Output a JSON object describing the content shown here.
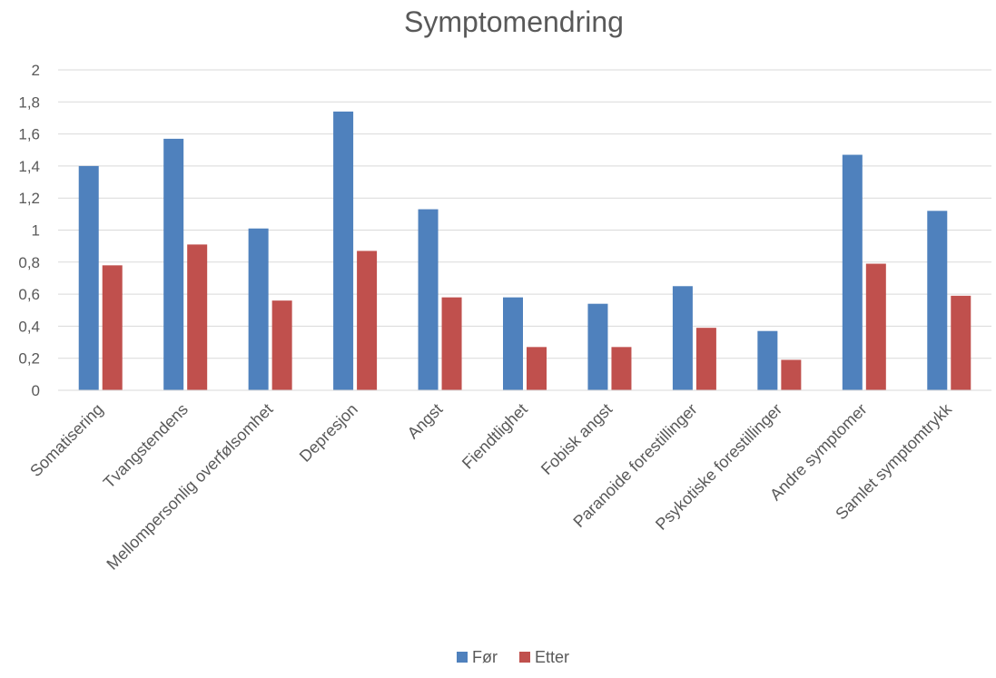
{
  "chart_data": {
    "type": "bar",
    "title": "Symptomendring",
    "xlabel": "",
    "ylabel": "",
    "ylim": [
      0,
      2
    ],
    "y_ticks": [
      "0",
      "0,2",
      "0,4",
      "0,6",
      "0,8",
      "1",
      "1,2",
      "1,4",
      "1,6",
      "1,8",
      "2"
    ],
    "grid": true,
    "legend_position": "bottom",
    "categories": [
      "Somatisering",
      "Tvangstendens",
      "Mellompersonlig overfølsomhet",
      "Depresjon",
      "Angst",
      "Fiendtlighet",
      "Fobisk angst",
      "Paranoide forestillinger",
      "Psykotiske forestillinger",
      "Andre symptomer",
      "Samlet symptomtrykk"
    ],
    "series": [
      {
        "name": "Før",
        "color": "#4F81BD",
        "values": [
          1.4,
          1.57,
          1.01,
          1.74,
          1.13,
          0.58,
          0.54,
          0.65,
          0.37,
          1.47,
          1.12
        ]
      },
      {
        "name": "Etter",
        "color": "#C0504D",
        "values": [
          0.78,
          0.91,
          0.56,
          0.87,
          0.58,
          0.27,
          0.27,
          0.39,
          0.19,
          0.79,
          0.59
        ]
      }
    ]
  }
}
